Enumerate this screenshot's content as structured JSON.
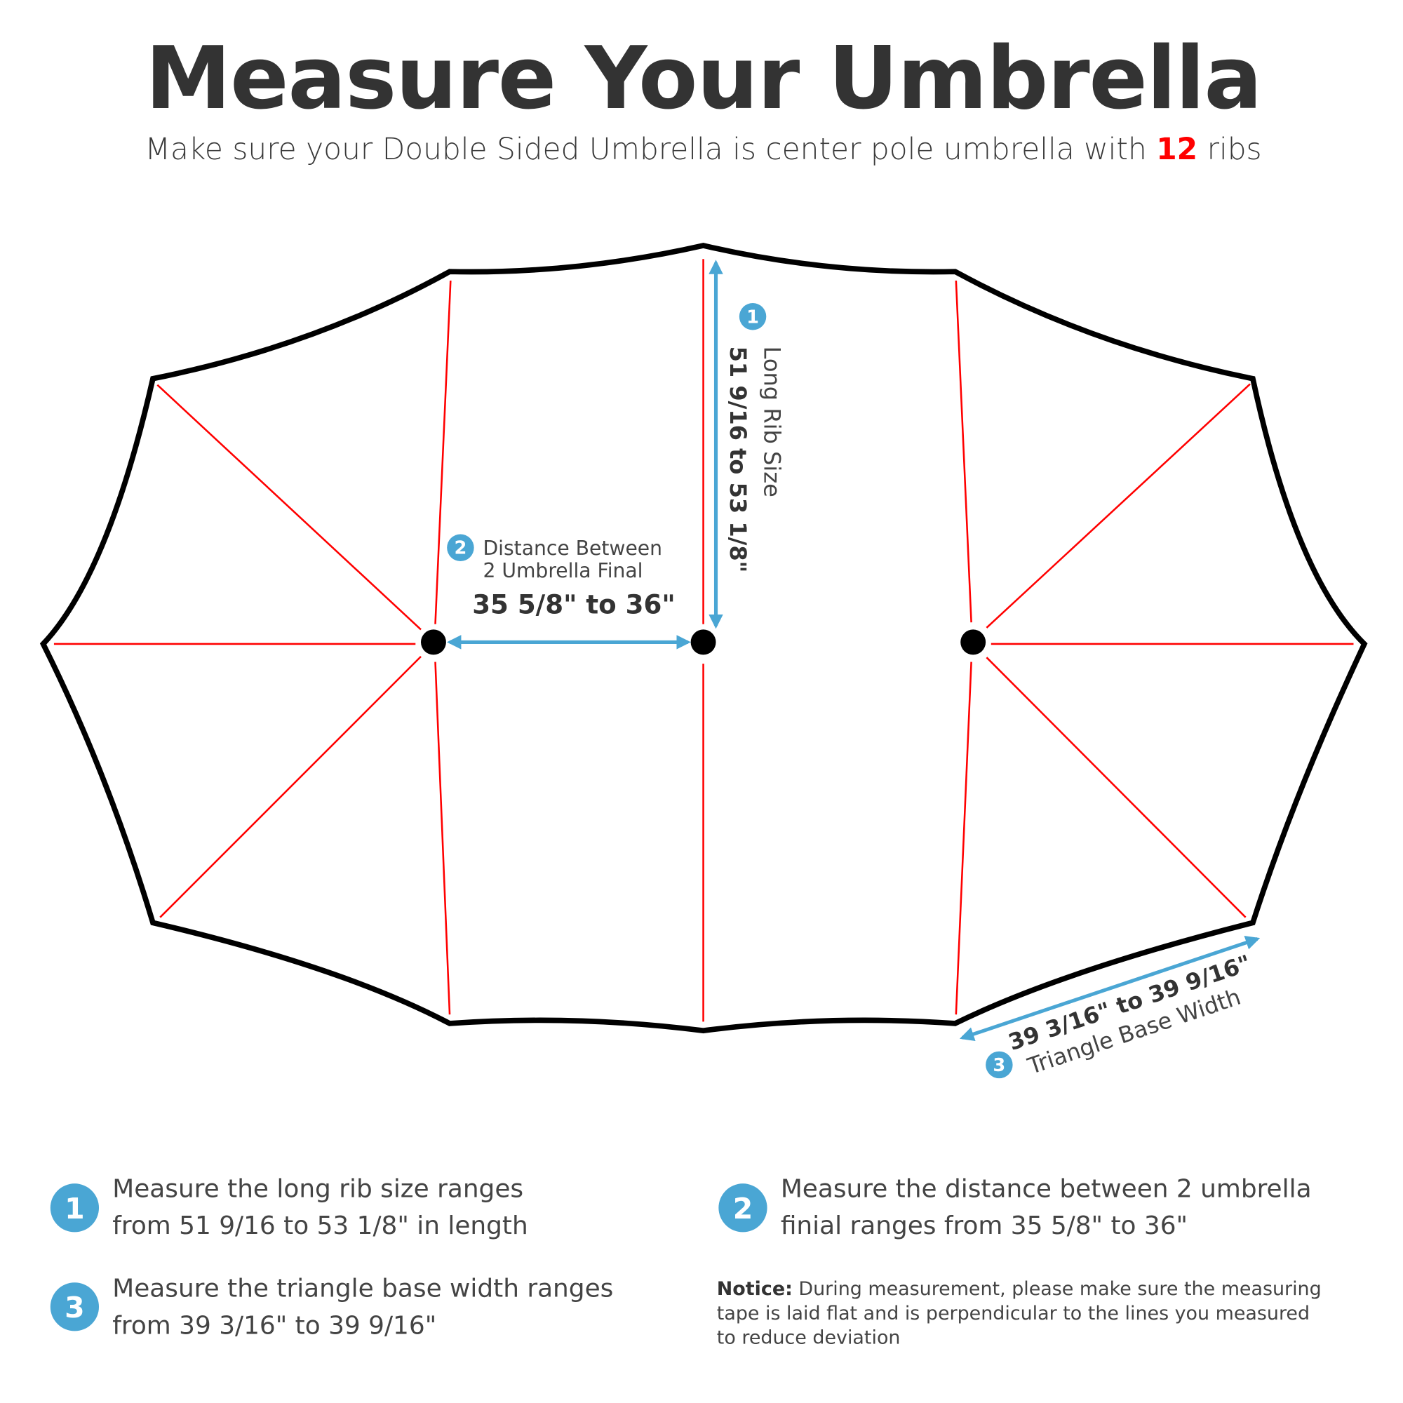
{
  "title": "Measure Your Umbrella",
  "subtitle": {
    "before": "Make sure your Double Sided Umbrella is center pole umbrella with ",
    "highlight": "12",
    "after": " ribs"
  },
  "colors": {
    "outline": "#000000",
    "ribs": "#ff0000",
    "accent": "#4aa6d4",
    "highlight": "#ff0000",
    "text": "#333333"
  },
  "diagram": {
    "rib_count": 12,
    "measure1": {
      "number": "1",
      "label": "Long Rib Size",
      "value": "51 9/16 to 53 1/8\""
    },
    "measure2": {
      "number": "2",
      "label_line1": "Distance Between",
      "label_line2": "2 Umbrella Final",
      "value": "35 5/8\" to 36\""
    },
    "measure3": {
      "number": "3",
      "label": "Triangle Base Width",
      "value": "39 3/16\" to 39 9/16\""
    }
  },
  "instructions": [
    {
      "number": "1",
      "line1": "Measure the long rib size ranges",
      "line2": "from 51 9/16 to 53 1/8\" in length"
    },
    {
      "number": "2",
      "line1": "Measure the distance between 2 umbrella",
      "line2": "finial ranges from 35 5/8\" to 36\""
    },
    {
      "number": "3",
      "line1": "Measure the triangle base width ranges",
      "line2": "from 39 3/16\" to 39 9/16\""
    }
  ],
  "notice": {
    "label": "Notice:",
    "line1": " During measurement, please make sure the measuring",
    "line2": "tape is laid flat and is perpendicular to the lines you measured",
    "line3": "to reduce deviation"
  }
}
